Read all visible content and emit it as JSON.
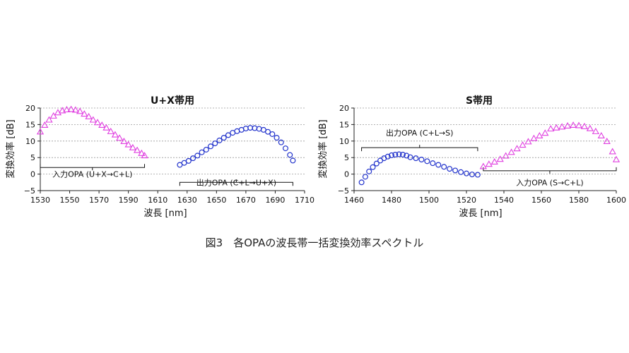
{
  "caption": "図3　各OPAの波長帯一括変換効率スペクトル",
  "chart_data": [
    {
      "type": "scatter",
      "title": "U+X帯用",
      "xlabel": "波長 [nm]",
      "ylabel": "変換効率 [dB]",
      "xlim": [
        1530,
        1710
      ],
      "ylim": [
        -5,
        20
      ],
      "xticks": [
        1530,
        1550,
        1570,
        1590,
        1610,
        1630,
        1650,
        1670,
        1690,
        1710
      ],
      "yticks": [
        -5,
        0,
        5,
        10,
        15,
        20
      ],
      "grid": "horizontal-dashed",
      "series": [
        {
          "color": "#e040e0",
          "marker": "triangle",
          "points": [
            [
              1530,
              12.8
            ],
            [
              1533,
              14.8
            ],
            [
              1536,
              16.4
            ],
            [
              1539,
              17.6
            ],
            [
              1542,
              18.6
            ],
            [
              1545,
              19.2
            ],
            [
              1548,
              19.5
            ],
            [
              1551,
              19.6
            ],
            [
              1554,
              19.4
            ],
            [
              1557,
              19.0
            ],
            [
              1560,
              18.2
            ],
            [
              1563,
              17.4
            ],
            [
              1566,
              16.4
            ],
            [
              1569,
              15.6
            ],
            [
              1572,
              14.8
            ],
            [
              1575,
              14.0
            ],
            [
              1578,
              12.9
            ],
            [
              1581,
              11.9
            ],
            [
              1584,
              10.9
            ],
            [
              1587,
              9.9
            ],
            [
              1590,
              8.9
            ],
            [
              1593,
              8.0
            ],
            [
              1596,
              7.2
            ],
            [
              1599,
              6.3
            ],
            [
              1601,
              5.6
            ]
          ]
        },
        {
          "color": "#2233cc",
          "marker": "circle",
          "points": [
            [
              1625,
              2.8
            ],
            [
              1628,
              3.4
            ],
            [
              1631,
              4.0
            ],
            [
              1634,
              4.8
            ],
            [
              1637,
              5.6
            ],
            [
              1640,
              6.6
            ],
            [
              1643,
              7.4
            ],
            [
              1646,
              8.4
            ],
            [
              1649,
              9.3
            ],
            [
              1652,
              10.2
            ],
            [
              1655,
              11.0
            ],
            [
              1658,
              11.8
            ],
            [
              1661,
              12.5
            ],
            [
              1664,
              13.0
            ],
            [
              1667,
              13.4
            ],
            [
              1670,
              13.8
            ],
            [
              1673,
              14.0
            ],
            [
              1676,
              13.9
            ],
            [
              1679,
              13.7
            ],
            [
              1682,
              13.4
            ],
            [
              1685,
              12.8
            ],
            [
              1688,
              12.1
            ],
            [
              1691,
              11.0
            ],
            [
              1694,
              9.6
            ],
            [
              1697,
              7.8
            ],
            [
              1700,
              5.8
            ],
            [
              1702,
              4.1
            ]
          ]
        }
      ],
      "annotations": [
        {
          "text": "入力OPA (U+X→C+L)",
          "x1": 1530,
          "x2": 1601,
          "y": 2,
          "bracket": "down",
          "text_y": 0
        },
        {
          "text": "出力OPA (C+L→U+X)",
          "x1": 1625,
          "x2": 1702,
          "y": -2.5,
          "bracket": "up",
          "text_y": -2.5
        }
      ]
    },
    {
      "type": "scatter",
      "title": "S帯用",
      "xlabel": "波長 [nm]",
      "ylabel": "変換効率 [dB]",
      "xlim": [
        1460,
        1600
      ],
      "ylim": [
        -5,
        20
      ],
      "xticks": [
        1460,
        1480,
        1500,
        1520,
        1540,
        1560,
        1580,
        1600
      ],
      "yticks": [
        -5,
        0,
        5,
        10,
        15,
        20
      ],
      "grid": "horizontal-dashed",
      "series": [
        {
          "color": "#2233cc",
          "marker": "circle",
          "points": [
            [
              1464,
              -2.5
            ],
            [
              1466,
              -0.8
            ],
            [
              1468,
              0.8
            ],
            [
              1470,
              2.1
            ],
            [
              1472,
              3.2
            ],
            [
              1474,
              4.1
            ],
            [
              1476,
              4.8
            ],
            [
              1478,
              5.3
            ],
            [
              1480,
              5.7
            ],
            [
              1482,
              5.9
            ],
            [
              1484,
              6.0
            ],
            [
              1486,
              5.9
            ],
            [
              1488,
              5.6
            ],
            [
              1490,
              5.1
            ],
            [
              1493,
              4.8
            ],
            [
              1496,
              4.4
            ],
            [
              1499,
              3.9
            ],
            [
              1502,
              3.3
            ],
            [
              1505,
              2.8
            ],
            [
              1508,
              2.2
            ],
            [
              1511,
              1.6
            ],
            [
              1514,
              1.1
            ],
            [
              1517,
              0.6
            ],
            [
              1520,
              0.2
            ],
            [
              1523,
              -0.1
            ],
            [
              1526,
              -0.2
            ]
          ]
        },
        {
          "color": "#e040e0",
          "marker": "triangle",
          "points": [
            [
              1529,
              2.3
            ],
            [
              1532,
              3.0
            ],
            [
              1535,
              3.7
            ],
            [
              1538,
              4.5
            ],
            [
              1541,
              5.5
            ],
            [
              1544,
              6.6
            ],
            [
              1547,
              7.7
            ],
            [
              1550,
              8.8
            ],
            [
              1553,
              9.8
            ],
            [
              1556,
              10.8
            ],
            [
              1559,
              11.6
            ],
            [
              1562,
              12.4
            ],
            [
              1565,
              13.7
            ],
            [
              1568,
              14.0
            ],
            [
              1571,
              14.3
            ],
            [
              1574,
              14.6
            ],
            [
              1577,
              14.8
            ],
            [
              1580,
              14.7
            ],
            [
              1583,
              14.4
            ],
            [
              1586,
              13.8
            ],
            [
              1589,
              12.9
            ],
            [
              1592,
              11.6
            ],
            [
              1595,
              9.9
            ],
            [
              1598,
              6.8
            ],
            [
              1600,
              4.4
            ]
          ]
        }
      ],
      "annotations": [
        {
          "text": "出力OPA (C+L→S)",
          "x1": 1464,
          "x2": 1526,
          "y": 8,
          "bracket": "up",
          "text_y": 12.5
        },
        {
          "text": "入力OPA (S→C+L)",
          "x1": 1529,
          "x2": 1600,
          "y": 1,
          "bracket": "down",
          "text_y": -2.5
        }
      ]
    }
  ]
}
